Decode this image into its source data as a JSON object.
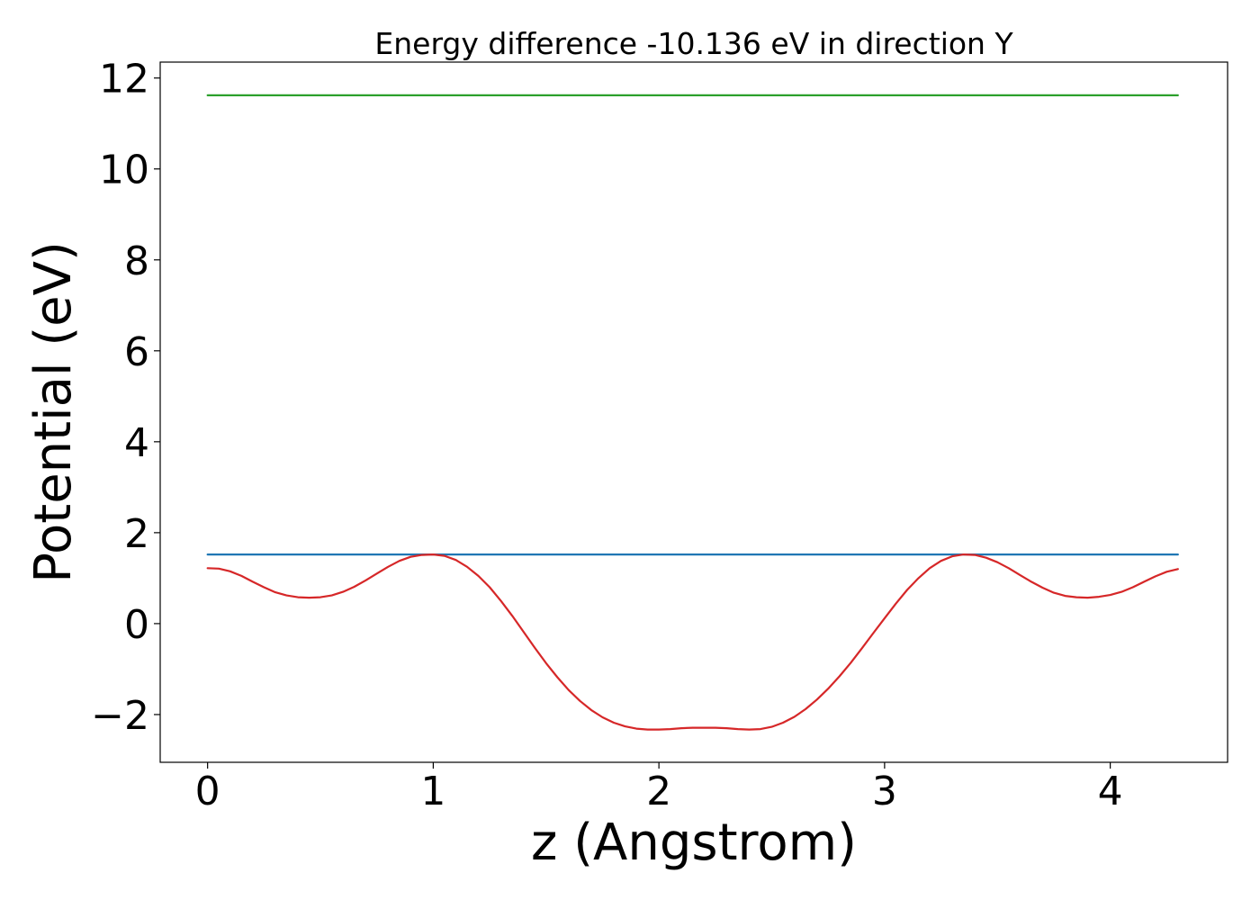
{
  "chart_data": {
    "type": "line",
    "title": "Energy difference -10.136 eV in direction Y",
    "xlabel": "z (Angstrom)",
    "ylabel": "Potential (eV)",
    "xlim": [
      -0.21,
      4.52
    ],
    "ylim": [
      -3.05,
      12.35
    ],
    "xticks": [
      0,
      1,
      2,
      3,
      4
    ],
    "xtick_labels": [
      "0",
      "1",
      "2",
      "3",
      "4"
    ],
    "yticks": [
      -2,
      0,
      2,
      4,
      6,
      8,
      10,
      12
    ],
    "ytick_labels": [
      "−2",
      "0",
      "2",
      "4",
      "6",
      "8",
      "10",
      "12"
    ],
    "grid": false,
    "series": [
      {
        "color": "#2ca02c",
        "x": [
          0,
          4.3
        ],
        "y": [
          11.62,
          11.62
        ]
      },
      {
        "color": "#1f77b4",
        "x": [
          0,
          4.3
        ],
        "y": [
          1.52,
          1.52
        ]
      },
      {
        "color": "#d62728",
        "x": [
          0,
          0.05,
          0.1,
          0.15,
          0.2,
          0.25,
          0.3,
          0.35,
          0.4,
          0.45,
          0.5,
          0.55,
          0.6,
          0.65,
          0.7,
          0.75,
          0.8,
          0.85,
          0.9,
          0.95,
          1.0,
          1.05,
          1.1,
          1.15,
          1.2,
          1.25,
          1.3,
          1.35,
          1.4,
          1.45,
          1.5,
          1.55,
          1.6,
          1.65,
          1.7,
          1.75,
          1.8,
          1.85,
          1.9,
          1.95,
          2.0,
          2.05,
          2.1,
          2.15,
          2.2,
          2.25,
          2.3,
          2.35,
          2.4,
          2.45,
          2.5,
          2.55,
          2.6,
          2.65,
          2.7,
          2.75,
          2.8,
          2.85,
          2.9,
          2.95,
          3.0,
          3.05,
          3.1,
          3.15,
          3.2,
          3.25,
          3.3,
          3.35,
          3.4,
          3.45,
          3.5,
          3.55,
          3.6,
          3.65,
          3.7,
          3.75,
          3.8,
          3.85,
          3.9,
          3.95,
          4.0,
          4.05,
          4.1,
          4.15,
          4.2,
          4.25,
          4.3
        ],
        "y": [
          1.22,
          1.21,
          1.15,
          1.05,
          0.92,
          0.8,
          0.69,
          0.62,
          0.58,
          0.57,
          0.58,
          0.62,
          0.7,
          0.81,
          0.95,
          1.1,
          1.25,
          1.38,
          1.47,
          1.51,
          1.52,
          1.49,
          1.4,
          1.25,
          1.05,
          0.8,
          0.5,
          0.17,
          -0.18,
          -0.53,
          -0.87,
          -1.18,
          -1.46,
          -1.7,
          -1.9,
          -2.06,
          -2.18,
          -2.26,
          -2.31,
          -2.33,
          -2.33,
          -2.32,
          -2.3,
          -2.29,
          -2.29,
          -2.29,
          -2.3,
          -2.32,
          -2.33,
          -2.32,
          -2.27,
          -2.18,
          -2.05,
          -1.88,
          -1.67,
          -1.43,
          -1.16,
          -0.86,
          -0.54,
          -0.21,
          0.12,
          0.44,
          0.74,
          1.0,
          1.22,
          1.38,
          1.48,
          1.52,
          1.51,
          1.45,
          1.35,
          1.22,
          1.07,
          0.92,
          0.79,
          0.68,
          0.61,
          0.58,
          0.57,
          0.59,
          0.63,
          0.7,
          0.8,
          0.92,
          1.04,
          1.14,
          1.2
        ]
      }
    ]
  }
}
